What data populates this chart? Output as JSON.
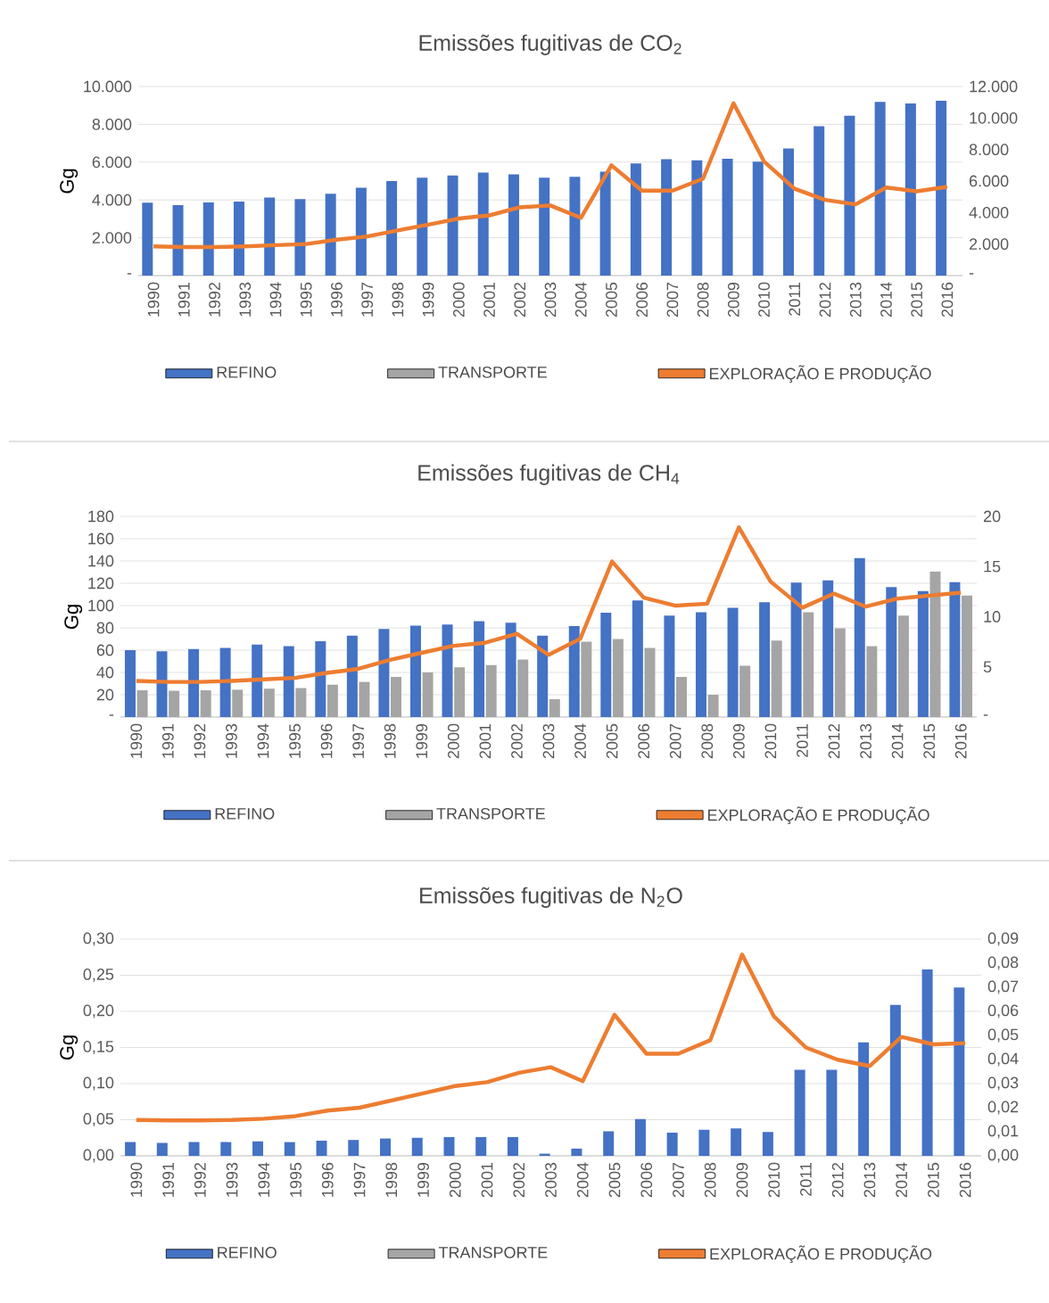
{
  "chart_data": [
    {
      "type": "bar",
      "title": "Emissões fugitivas de CO$_{2}$",
      "ylabel": "Gg",
      "categories": [
        "1990",
        "1991",
        "1992",
        "1993",
        "1994",
        "1995",
        "1996",
        "1997",
        "1998",
        "1999",
        "2000",
        "2001",
        "2002",
        "2003",
        "2004",
        "2005",
        "2006",
        "2007",
        "2008",
        "2009",
        "2010",
        "2011",
        "2012",
        "2013",
        "2014",
        "2015",
        "2016"
      ],
      "series": [
        {
          "name": "REFINO",
          "color": "#4472c4",
          "values": [
            3850,
            3720,
            3870,
            3920,
            4130,
            4050,
            4330,
            4650,
            5000,
            5180,
            5300,
            5450,
            5350,
            5180,
            5220,
            5500,
            5930,
            6150,
            6100,
            6180,
            6020,
            6720,
            7900,
            8450,
            9180,
            9100,
            9250
          ]
        },
        {
          "name": "TRANSPORTE",
          "color": "#a5a5a5",
          "values": [
            null,
            null,
            null,
            null,
            null,
            null,
            null,
            null,
            null,
            null,
            null,
            null,
            null,
            null,
            null,
            null,
            null,
            null,
            null,
            null,
            null,
            null,
            null,
            null,
            null,
            null,
            null
          ]
        },
        {
          "name": "EXPLORAÇÃO E PRODUÇÃO",
          "color": "#ed7d31",
          "type": "line",
          "axis": "y2",
          "values": [
            1850,
            1810,
            1810,
            1850,
            1930,
            2000,
            2280,
            2480,
            2870,
            3230,
            3620,
            3820,
            4330,
            4450,
            3660,
            7000,
            5390,
            5390,
            6140,
            10940,
            7240,
            5510,
            4800,
            4520,
            5590,
            5350,
            5630
          ]
        }
      ],
      "ylim": [
        0,
        10000
      ],
      "yticks": [
        {
          "value": 0,
          "label": "-"
        },
        {
          "value": 2000,
          "label": "2.000"
        },
        {
          "value": 4000,
          "label": "4.000"
        },
        {
          "value": 6000,
          "label": "6.000"
        },
        {
          "value": 8000,
          "label": "8.000"
        },
        {
          "value": 10000,
          "label": "10.000"
        }
      ],
      "y2lim": [
        0,
        12000
      ],
      "y2ticks": [
        {
          "value": 0,
          "label": "-"
        },
        {
          "value": 2000,
          "label": "2.000"
        },
        {
          "value": 4000,
          "label": "4.000"
        },
        {
          "value": 6000,
          "label": "6.000"
        },
        {
          "value": 8000,
          "label": "8.000"
        },
        {
          "value": 10000,
          "label": "10.000"
        },
        {
          "value": 12000,
          "label": "12.000"
        }
      ],
      "grid": "y",
      "legend": "bottom"
    },
    {
      "type": "bar",
      "title": "Emissões fugitivas de CH$_{4}$",
      "ylabel": "Gg",
      "categories": [
        "1990",
        "1991",
        "1992",
        "1993",
        "1994",
        "1995",
        "1996",
        "1997",
        "1998",
        "1999",
        "2000",
        "2001",
        "2002",
        "2003",
        "2004",
        "2005",
        "2006",
        "2007",
        "2008",
        "2009",
        "2010",
        "2011",
        "2012",
        "2013",
        "2014",
        "2015",
        "2016"
      ],
      "series": [
        {
          "name": "REFINO",
          "color": "#4472c4",
          "values": [
            60,
            59,
            61,
            62,
            65,
            63.5,
            68,
            73,
            79,
            82,
            83,
            86,
            84.5,
            73,
            81.5,
            93.5,
            104.5,
            91,
            94,
            98,
            103,
            120.5,
            122.5,
            142.5,
            116.5,
            113,
            121
          ]
        },
        {
          "name": "TRANSPORTE",
          "color": "#a5a5a5",
          "values": [
            24,
            23.5,
            24,
            24.5,
            25.5,
            26,
            29,
            31.5,
            36,
            40,
            44.5,
            46.5,
            51.5,
            16,
            67.5,
            70,
            62,
            36,
            20,
            46,
            68.5,
            94,
            79.5,
            63.5,
            91,
            130.5,
            109
          ]
        },
        {
          "name": "EXPLORAÇÃO E PRODUÇÃO",
          "color": "#ed7d31",
          "type": "line",
          "axis": "y2",
          "values": [
            3.6,
            3.5,
            3.5,
            3.6,
            3.75,
            3.9,
            4.4,
            4.8,
            5.7,
            6.4,
            7.1,
            7.4,
            8.3,
            6.2,
            7.8,
            15.5,
            11.9,
            11.1,
            11.3,
            18.9,
            13.5,
            10.9,
            12.3,
            11.0,
            11.8,
            12.1,
            12.4
          ]
        }
      ],
      "ylim": [
        0,
        180
      ],
      "yticks": [
        {
          "value": 0,
          "label": "-"
        },
        20,
        40,
        60,
        80,
        100,
        120,
        140,
        160,
        180
      ],
      "y2lim": [
        0,
        20
      ],
      "y2ticks": [
        {
          "value": 0,
          "label": "-"
        },
        5,
        10,
        15,
        20
      ],
      "grid": "y",
      "legend": "bottom"
    },
    {
      "type": "bar",
      "title": "Emissões fugitivas de N$_{2}$O",
      "ylabel": "Gg",
      "categories": [
        "1990",
        "1991",
        "1992",
        "1993",
        "1994",
        "1995",
        "1996",
        "1997",
        "1998",
        "1999",
        "2000",
        "2001",
        "2002",
        "2003",
        "2004",
        "2005",
        "2006",
        "2007",
        "2008",
        "2009",
        "2010",
        "2011",
        "2012",
        "2013",
        "2014",
        "2015",
        "2016"
      ],
      "series": [
        {
          "name": "REFINO",
          "color": "#4472c4",
          "values": [
            0.019,
            0.018,
            0.019,
            0.019,
            0.02,
            0.019,
            0.021,
            0.022,
            0.024,
            0.025,
            0.026,
            0.026,
            0.026,
            0.003,
            0.01,
            0.034,
            0.051,
            0.032,
            0.036,
            0.038,
            0.033,
            0.119,
            0.119,
            0.157,
            0.209,
            0.258,
            0.233
          ]
        },
        {
          "name": "TRANSPORTE",
          "color": "#a5a5a5",
          "values": [
            null,
            null,
            null,
            null,
            null,
            null,
            null,
            null,
            null,
            null,
            null,
            null,
            null,
            null,
            null,
            null,
            null,
            null,
            null,
            null,
            null,
            null,
            null,
            null,
            null,
            null,
            null
          ]
        },
        {
          "name": "EXPLORAÇÃO E PRODUÇÃO",
          "color": "#ed7d31",
          "type": "line",
          "axis": "y2",
          "values": [
            0.0149,
            0.0147,
            0.0147,
            0.0149,
            0.0154,
            0.0165,
            0.0188,
            0.02,
            0.023,
            0.026,
            0.029,
            0.0306,
            0.0345,
            0.0368,
            0.031,
            0.0586,
            0.0424,
            0.0424,
            0.048,
            0.0836,
            0.0579,
            0.045,
            0.0399,
            0.0373,
            0.0494,
            0.0463,
            0.0468
          ]
        }
      ],
      "ylim": [
        0,
        0.3
      ],
      "yticks": [
        {
          "value": 0,
          "label": "0,00"
        },
        {
          "value": 0.05,
          "label": "0,05"
        },
        {
          "value": 0.1,
          "label": "0,10"
        },
        {
          "value": 0.15,
          "label": "0,15"
        },
        {
          "value": 0.2,
          "label": "0,20"
        },
        {
          "value": 0.25,
          "label": "0,25"
        },
        {
          "value": 0.3,
          "label": "0,30"
        }
      ],
      "y2lim": [
        0,
        0.09
      ],
      "y2ticks": [
        {
          "value": 0,
          "label": "0,00"
        },
        {
          "value": 0.01,
          "label": "0,01"
        },
        {
          "value": 0.02,
          "label": "0,02"
        },
        {
          "value": 0.03,
          "label": "0,03"
        },
        {
          "value": 0.04,
          "label": "0,04"
        },
        {
          "value": 0.05,
          "label": "0,05"
        },
        {
          "value": 0.06,
          "label": "0,06"
        },
        {
          "value": 0.07,
          "label": "0,07"
        },
        {
          "value": 0.08,
          "label": "0,08"
        },
        {
          "value": 0.09,
          "label": "0,09"
        }
      ],
      "grid": "y",
      "legend": "bottom"
    }
  ]
}
